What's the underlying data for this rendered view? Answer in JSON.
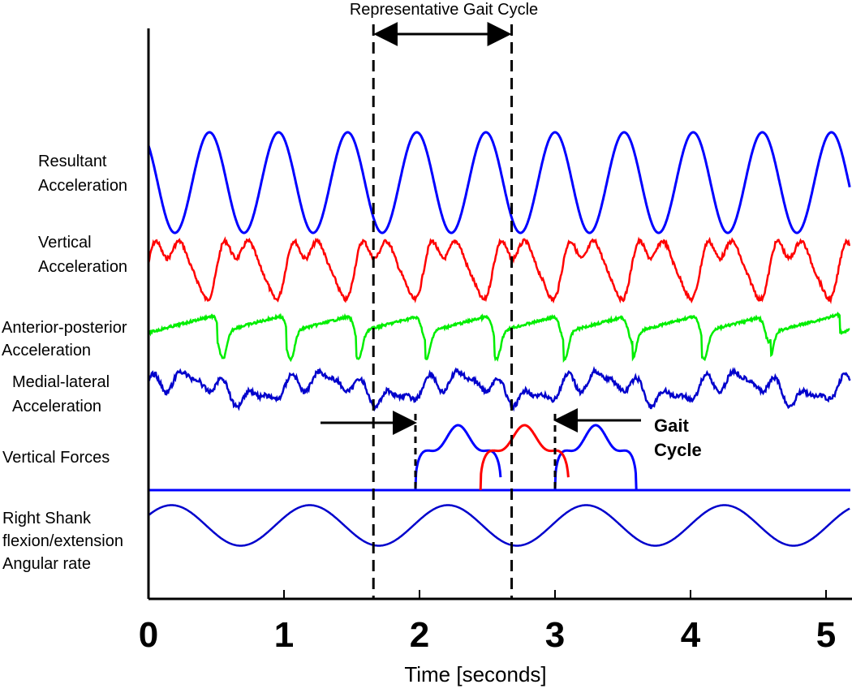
{
  "chart_data": {
    "type": "line",
    "title": "Representative Gait Cycle",
    "xlabel": "Time [seconds]",
    "ylabel": "",
    "xlim": [
      0,
      5.2
    ],
    "x_ticks": [
      "0",
      "1",
      "2",
      "3",
      "4",
      "5"
    ],
    "grid": false,
    "representative_cycle": [
      1.66,
      2.68
    ],
    "gait_cycle_markers": [
      1.97,
      3.0
    ],
    "gait_cycle_label": [
      "Gait",
      "Cycle"
    ],
    "series": [
      {
        "name": "Resultant Acceleration",
        "label_lines": [
          "Resultant",
          "Acceleration"
        ],
        "color": "#0000ff",
        "period": 1.02,
        "peak_times": [
          0.45,
          0.98,
          1.5,
          2.0,
          2.52,
          3.02,
          3.52,
          4.02,
          4.55,
          5.05
        ]
      },
      {
        "name": "Vertical Acceleration",
        "label_lines": [
          "Vertical",
          "Acceleration"
        ],
        "color": "#ff0000",
        "period": 1.02
      },
      {
        "name": "Anterior-posterior Acceleration",
        "label_lines": [
          "Anterior-posterior",
          "Acceleration"
        ],
        "color": "#00ee00",
        "period": 1.02,
        "dip_times": [
          0.55,
          1.05,
          1.55,
          2.05,
          2.57,
          3.07,
          3.57,
          4.1,
          4.58
        ]
      },
      {
        "name": "Medial-lateral Acceleration",
        "label_lines": [
          "Medial-lateral",
          "Acceleration"
        ],
        "color": "#0000cc",
        "period": 1.02
      },
      {
        "name": "Vertical Forces",
        "label_lines": [
          "Vertical Forces"
        ],
        "color": "#0000ff",
        "secondary_color": "#ff0000",
        "right_foot": [
          [
            1.97,
            2.6
          ],
          [
            3.0,
            3.6
          ]
        ],
        "left_foot": [
          [
            2.45,
            3.1
          ]
        ]
      },
      {
        "name": "Right Shank flexion/extension Angular rate",
        "label_lines": [
          "Right Shank",
          "flexion/extension",
          "Angular rate"
        ],
        "color": "#0000cc",
        "period": 1.02,
        "min_times": [
          0.68,
          1.66,
          2.68,
          3.7,
          4.72
        ]
      }
    ]
  }
}
